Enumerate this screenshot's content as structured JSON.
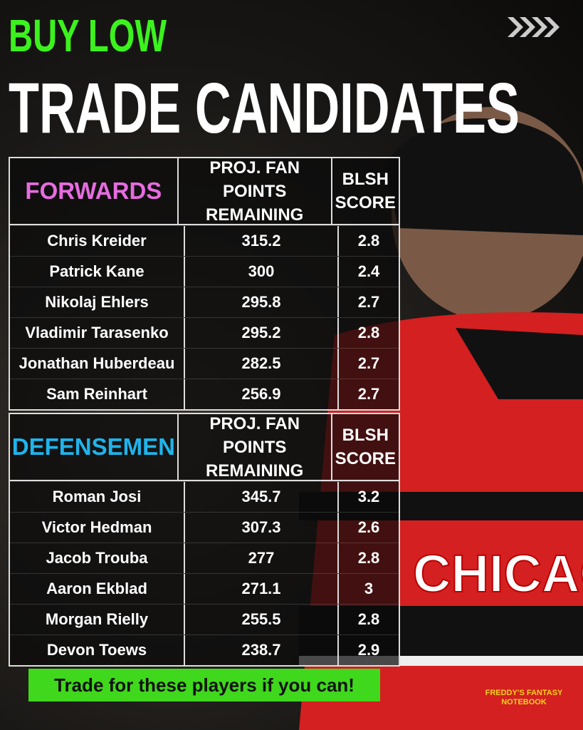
{
  "header": {
    "kicker": "BUY LOW",
    "title": "TRADE CANDIDATES"
  },
  "tables": [
    {
      "group": "FORWARDS",
      "columns": [
        "PROJ. FAN POINTS REMAINING",
        "BLSH SCORE"
      ],
      "rows": [
        [
          "Chris Kreider",
          "315.2",
          "2.8"
        ],
        [
          "Patrick Kane",
          "300",
          "2.4"
        ],
        [
          "Nikolaj Ehlers",
          "295.8",
          "2.7"
        ],
        [
          "Vladimir Tarasenko",
          "295.2",
          "2.8"
        ],
        [
          "Jonathan Huberdeau",
          "282.5",
          "2.7"
        ],
        [
          "Sam Reinhart",
          "256.9",
          "2.7"
        ]
      ]
    },
    {
      "group": "DEFENSEMEN",
      "columns": [
        "PROJ. FAN POINTS REMAINING",
        "BLSH SCORE"
      ],
      "rows": [
        [
          "Roman Josi",
          "345.7",
          "3.2"
        ],
        [
          "Victor Hedman",
          "307.3",
          "2.6"
        ],
        [
          "Jacob Trouba",
          "277",
          "2.8"
        ],
        [
          "Aaron Ekblad",
          "271.1",
          "3"
        ],
        [
          "Morgan Rielly",
          "255.5",
          "2.8"
        ],
        [
          "Devon Toews",
          "238.7",
          "2.9"
        ]
      ]
    }
  ],
  "footer": {
    "cta": "Trade for these players if you can!",
    "logo": "FREDDY'S FANTASY NOTEBOOK"
  }
}
